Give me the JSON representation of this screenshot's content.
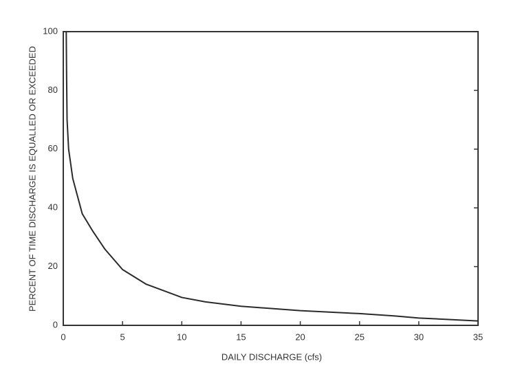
{
  "chart_data": {
    "type": "line",
    "xlabel": "DAILY DISCHARGE (cfs)",
    "ylabel": "PERCENT OF TIME DISCHARGE IS EQUALLED OR EXCEEDED",
    "x": [
      0.25,
      0.28,
      0.32,
      0.45,
      0.8,
      1.6,
      2.5,
      3.5,
      5,
      7,
      10,
      12,
      15,
      20,
      25,
      28,
      30,
      35
    ],
    "series": [
      {
        "color": "#2a2a2a",
        "values": [
          100,
          85,
          70,
          60,
          50,
          38,
          32,
          26,
          19,
          14,
          9.5,
          8,
          6.5,
          5,
          4,
          3.2,
          2.5,
          1.5
        ]
      }
    ],
    "xlim": [
      0,
      35
    ],
    "xticks": [
      0,
      5,
      10,
      15,
      20,
      25,
      30,
      35
    ],
    "ylim": [
      0,
      100
    ],
    "yticks": [
      0,
      20,
      40,
      60,
      80,
      100
    ],
    "grid": false
  }
}
